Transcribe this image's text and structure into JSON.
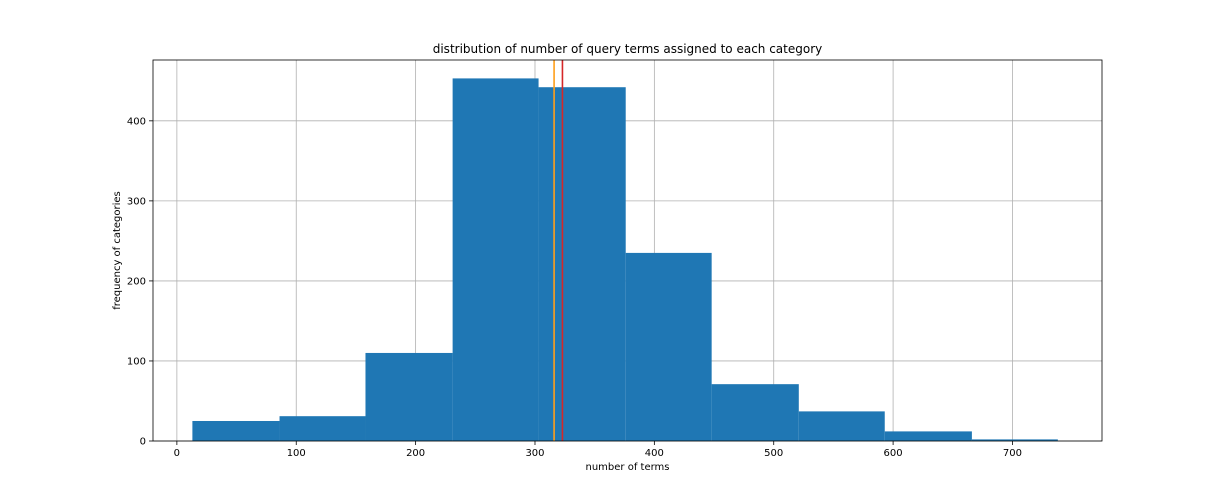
{
  "chart_data": {
    "type": "bar",
    "title": "distribution of number of query terms assigned to each category",
    "xlabel": "number of terms",
    "ylabel": "frequency of categories",
    "xlim": [
      -20,
      775
    ],
    "ylim": [
      0,
      476
    ],
    "xticks": [
      0,
      100,
      200,
      300,
      400,
      500,
      600,
      700
    ],
    "yticks": [
      0,
      100,
      200,
      300,
      400
    ],
    "grid": true,
    "bar_color": "#1f77b4",
    "bins": [
      {
        "x0": 13,
        "x1": 86,
        "count": 25
      },
      {
        "x0": 86,
        "x1": 158,
        "count": 31
      },
      {
        "x0": 158,
        "x1": 231,
        "count": 110
      },
      {
        "x0": 231,
        "x1": 303,
        "count": 453
      },
      {
        "x0": 303,
        "x1": 376,
        "count": 442
      },
      {
        "x0": 376,
        "x1": 448,
        "count": 235
      },
      {
        "x0": 448,
        "x1": 521,
        "count": 71
      },
      {
        "x0": 521,
        "x1": 593,
        "count": 37
      },
      {
        "x0": 593,
        "x1": 666,
        "count": 12
      },
      {
        "x0": 666,
        "x1": 738,
        "count": 2
      }
    ],
    "vlines": [
      {
        "x": 316,
        "color": "#ff9f1a"
      },
      {
        "x": 323,
        "color": "#d62728"
      }
    ]
  }
}
